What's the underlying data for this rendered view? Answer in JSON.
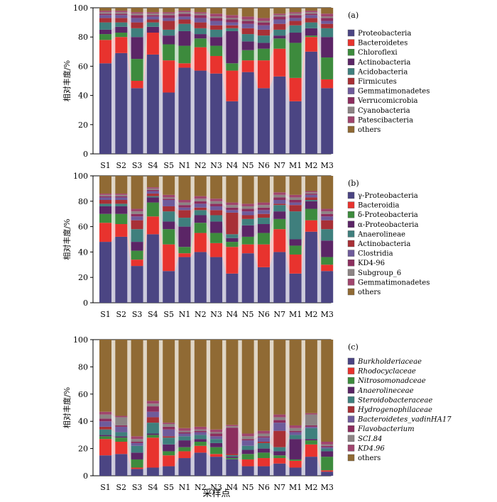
{
  "figure": {
    "ylabel": "相对丰度/%",
    "xlabel": "采样点"
  },
  "chart_data": [
    {
      "type": "bar",
      "stacked": true,
      "panel_label": "(a)",
      "ylim": [
        0,
        100
      ],
      "yticks": [
        "0",
        "20",
        "40",
        "60",
        "80",
        "100"
      ],
      "categories": [
        "S1",
        "S2",
        "S3",
        "S4",
        "S5",
        "N1",
        "N2",
        "N3",
        "N4",
        "N5",
        "N6",
        "N7",
        "M1",
        "M2",
        "M3"
      ],
      "legend_position": "right",
      "series": [
        {
          "name": "Proteobacteria",
          "color": "#4b4583",
          "values": [
            62,
            69,
            45,
            68,
            42,
            59,
            57,
            55,
            36,
            56,
            45,
            53,
            36,
            70,
            45
          ]
        },
        {
          "name": "Bacteroidetes",
          "color": "#e8332e",
          "values": [
            16,
            11,
            5,
            15,
            22,
            3,
            16,
            12,
            21,
            8,
            19,
            19,
            16,
            10,
            6
          ]
        },
        {
          "name": "Chloroflexi",
          "color": "#3d8b3d",
          "values": [
            4,
            3,
            15,
            0,
            11,
            12,
            6,
            7,
            5,
            7,
            8,
            7,
            24,
            1,
            15
          ]
        },
        {
          "name": "Actinobacteria",
          "color": "#5b2566",
          "values": [
            3,
            4,
            15,
            4,
            6,
            10,
            3,
            6,
            22,
            6,
            4,
            2,
            7,
            5,
            14
          ]
        },
        {
          "name": "Acidobacteria",
          "color": "#3f7f7d",
          "values": [
            5,
            3,
            6,
            3,
            4,
            5,
            4,
            5,
            2,
            5,
            5,
            4,
            5,
            4,
            6
          ]
        },
        {
          "name": "Firmicutes",
          "color": "#a83036",
          "values": [
            3,
            3,
            4,
            2,
            6,
            3,
            4,
            3,
            2,
            4,
            4,
            4,
            3,
            3,
            3
          ]
        },
        {
          "name": "Gemmatimonadetes",
          "color": "#6e5b9b",
          "values": [
            2,
            2,
            3,
            2,
            2,
            2,
            3,
            3,
            2,
            3,
            3,
            3,
            2,
            2,
            2
          ]
        },
        {
          "name": "Verrucomicrobia",
          "color": "#8c2e5e",
          "values": [
            1,
            1,
            2,
            1,
            2,
            2,
            2,
            2,
            2,
            2,
            2,
            2,
            2,
            1,
            2
          ]
        },
        {
          "name": "Cyanobacteria",
          "color": "#8c8484",
          "values": [
            1,
            1,
            1,
            1,
            1,
            1,
            1,
            1,
            1,
            1,
            1,
            1,
            1,
            1,
            1
          ]
        },
        {
          "name": "Patescibacteria",
          "color": "#a0456d",
          "values": [
            1,
            1,
            1,
            1,
            1,
            1,
            1,
            2,
            2,
            2,
            2,
            1,
            1,
            1,
            2
          ]
        },
        {
          "name": "others",
          "color": "#906a34",
          "values": [
            2,
            2,
            3,
            3,
            3,
            2,
            3,
            4,
            5,
            6,
            7,
            4,
            3,
            2,
            4
          ]
        }
      ]
    },
    {
      "type": "bar",
      "stacked": true,
      "panel_label": "(b)",
      "ylim": [
        0,
        100
      ],
      "yticks": [
        "0",
        "20",
        "40",
        "60",
        "80",
        "100"
      ],
      "categories": [
        "S1",
        "S2",
        "S3",
        "S4",
        "S5",
        "N1",
        "N2",
        "N3",
        "N4",
        "N5",
        "N6",
        "N7",
        "M1",
        "M2",
        "M3"
      ],
      "legend_position": "right",
      "series": [
        {
          "name": "γ-Proteobacteria",
          "color": "#4b4583",
          "values": [
            48,
            52,
            29,
            54,
            25,
            36,
            40,
            36,
            23,
            39,
            28,
            40,
            23,
            56,
            25
          ]
        },
        {
          "name": "Bacteroidia",
          "color": "#e8332e",
          "values": [
            15,
            10,
            5,
            14,
            21,
            3,
            15,
            11,
            21,
            7,
            18,
            18,
            15,
            9,
            5
          ]
        },
        {
          "name": "δ-Proteobacteria",
          "color": "#3d8b3d",
          "values": [
            7,
            8,
            7,
            11,
            12,
            5,
            8,
            8,
            4,
            6,
            9,
            8,
            7,
            9,
            6
          ]
        },
        {
          "name": "α-Proteobacteria",
          "color": "#5b2566",
          "values": [
            6,
            6,
            7,
            4,
            6,
            16,
            6,
            9,
            3,
            9,
            7,
            6,
            5,
            6,
            13
          ]
        },
        {
          "name": "Anaerolineae",
          "color": "#3f7f7d",
          "values": [
            2,
            2,
            10,
            1,
            8,
            7,
            4,
            5,
            3,
            5,
            5,
            5,
            22,
            1,
            9
          ]
        },
        {
          "name": "Actinobacteria",
          "color": "#a83036",
          "values": [
            3,
            3,
            7,
            2,
            4,
            6,
            2,
            4,
            17,
            3,
            3,
            1,
            5,
            2,
            7
          ]
        },
        {
          "name": "Clostridia",
          "color": "#6e5b9b",
          "values": [
            2,
            2,
            3,
            2,
            5,
            2,
            3,
            3,
            2,
            3,
            3,
            3,
            2,
            2,
            3
          ]
        },
        {
          "name": "KD4-96",
          "color": "#8c2e5e",
          "values": [
            1,
            1,
            2,
            1,
            1,
            2,
            2,
            2,
            2,
            2,
            2,
            2,
            2,
            1,
            2
          ]
        },
        {
          "name": "Subgroup_6",
          "color": "#8c8484",
          "values": [
            1,
            1,
            2,
            1,
            1,
            2,
            2,
            2,
            2,
            2,
            2,
            2,
            2,
            1,
            2
          ]
        },
        {
          "name": "Gemmatimonadetes",
          "color": "#a0456d",
          "values": [
            1,
            1,
            2,
            1,
            2,
            2,
            2,
            2,
            2,
            2,
            2,
            2,
            2,
            1,
            2
          ]
        },
        {
          "name": "others",
          "color": "#906a34",
          "values": [
            14,
            14,
            26,
            9,
            15,
            19,
            16,
            18,
            21,
            22,
            21,
            13,
            15,
            12,
            26
          ]
        }
      ]
    },
    {
      "type": "bar",
      "stacked": true,
      "panel_label": "(c)",
      "ylim": [
        0,
        100
      ],
      "yticks": [
        "0",
        "20",
        "40",
        "60",
        "80",
        "100"
      ],
      "categories": [
        "S1",
        "S2",
        "S3",
        "S4",
        "S5",
        "N1",
        "N2",
        "N3",
        "N4",
        "N5",
        "N6",
        "N7",
        "M1",
        "M2",
        "M3"
      ],
      "legend_position": "right",
      "series": [
        {
          "name": "Burkholderiaceae",
          "italic": true,
          "color": "#4b4583",
          "values": [
            15,
            16,
            5,
            6,
            7,
            13,
            17,
            14,
            12,
            7,
            7,
            9,
            6,
            14,
            3
          ]
        },
        {
          "name": "Rhodocyclaceae",
          "italic": true,
          "color": "#e8332e",
          "values": [
            12,
            9,
            1,
            22,
            8,
            5,
            5,
            2,
            0,
            5,
            6,
            4,
            5,
            9,
            1
          ]
        },
        {
          "name": "Nitrosomonadceae",
          "italic": true,
          "color": "#3d8b3d",
          "values": [
            2,
            3,
            6,
            2,
            3,
            3,
            3,
            5,
            1,
            4,
            4,
            2,
            1,
            3,
            10
          ]
        },
        {
          "name": "Anaerolineceae",
          "italic": true,
          "color": "#5b2566",
          "values": [
            1,
            1,
            5,
            1,
            5,
            5,
            2,
            3,
            1,
            3,
            3,
            3,
            15,
            1,
            4
          ]
        },
        {
          "name": "Steroidobacteraceae",
          "italic": true,
          "color": "#3f7f7d",
          "values": [
            4,
            3,
            5,
            8,
            5,
            3,
            3,
            3,
            1,
            3,
            4,
            3,
            3,
            8,
            2
          ]
        },
        {
          "name": "Hydrogenophilaceae",
          "italic": true,
          "color": "#a83036",
          "values": [
            2,
            0,
            0,
            4,
            1,
            0,
            0,
            0,
            1,
            0,
            1,
            12,
            0,
            0,
            0
          ]
        },
        {
          "name": "Bacteroidetes_vadinHA17",
          "italic": true,
          "color": "#6e5b9b",
          "values": [
            4,
            4,
            2,
            4,
            5,
            2,
            2,
            2,
            0,
            4,
            3,
            6,
            2,
            1,
            1
          ]
        },
        {
          "name": "Flavobacterium",
          "italic": true,
          "color": "#8c2e5e",
          "values": [
            2,
            1,
            1,
            4,
            2,
            1,
            1,
            2,
            19,
            1,
            1,
            2,
            1,
            1,
            1
          ]
        },
        {
          "name": "SCI.84",
          "italic": true,
          "color": "#8c8484",
          "values": [
            3,
            6,
            2,
            2,
            2,
            1,
            1,
            1,
            1,
            2,
            2,
            2,
            2,
            8,
            1
          ]
        },
        {
          "name": "KD4.96",
          "italic": true,
          "color": "#a0456d",
          "values": [
            2,
            1,
            2,
            2,
            1,
            2,
            2,
            2,
            1,
            2,
            2,
            2,
            2,
            1,
            2
          ]
        },
        {
          "name": "others",
          "color": "#906a34",
          "values": [
            53,
            56,
            71,
            45,
            61,
            65,
            64,
            66,
            62,
            69,
            67,
            55,
            63,
            54,
            75
          ]
        }
      ]
    }
  ]
}
